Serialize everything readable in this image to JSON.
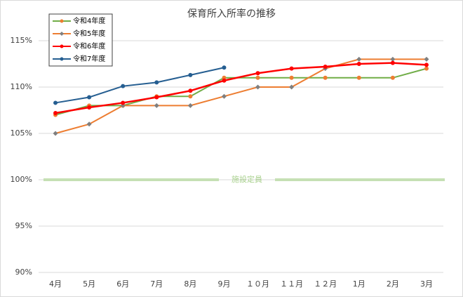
{
  "chart_data": {
    "type": "line",
    "title": "保育所入所率の推移",
    "categories": [
      "4月",
      "5月",
      "6月",
      "7月",
      "8月",
      "9月",
      "１０月",
      "１１月",
      "１２月",
      "1月",
      "2月",
      "3月"
    ],
    "series": [
      {
        "name": "令和4年度",
        "color": "#70ad47",
        "marker_color": "#ed7d31",
        "marker": "circle",
        "values": [
          107,
          108,
          108,
          109,
          109,
          111,
          111,
          111,
          111,
          111,
          111,
          112
        ]
      },
      {
        "name": "令和5年度",
        "color": "#ed7d31",
        "marker_color": "#7f7f7f",
        "marker": "diamond",
        "values": [
          105,
          106,
          108,
          108,
          108,
          109,
          110,
          110,
          112,
          113,
          113,
          113
        ]
      },
      {
        "name": "令和6年度",
        "color": "#ff0000",
        "marker_color": "#ff0000",
        "marker": "circle",
        "values": [
          107.2,
          107.8,
          108.3,
          108.9,
          109.6,
          110.7,
          111.5,
          112.0,
          112.2,
          112.5,
          112.6,
          112.4
        ]
      },
      {
        "name": "令和7年度",
        "color": "#255e91",
        "marker_color": "#255e91",
        "marker": "circle",
        "values": [
          108.3,
          108.9,
          110.1,
          110.5,
          111.3,
          112.1,
          null,
          null,
          null,
          null,
          null,
          null
        ]
      }
    ],
    "ylim": [
      90,
      115
    ],
    "yticks": [
      {
        "value": 90,
        "label": "90%"
      },
      {
        "value": 95,
        "label": "95%"
      },
      {
        "value": 100,
        "label": "100%"
      },
      {
        "value": 105,
        "label": "105%"
      },
      {
        "value": 110,
        "label": "110%"
      },
      {
        "value": 115,
        "label": "115%"
      }
    ],
    "grid": true,
    "legend": "upper left",
    "reference_line": {
      "value": 100,
      "label": "施設定員",
      "color": "#c5e0b4"
    }
  }
}
